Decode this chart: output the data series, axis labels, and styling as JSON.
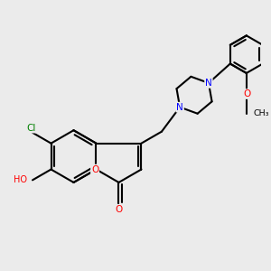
{
  "background_color": "#ebebeb",
  "bond_color": "#000000",
  "N_color": "#0000ff",
  "O_color": "#ff0000",
  "Cl_color": "#008000",
  "line_width": 1.5,
  "figsize": [
    3.0,
    3.0
  ],
  "dpi": 100,
  "xlim": [
    -1.0,
    9.0
  ],
  "ylim": [
    -1.0,
    9.0
  ]
}
